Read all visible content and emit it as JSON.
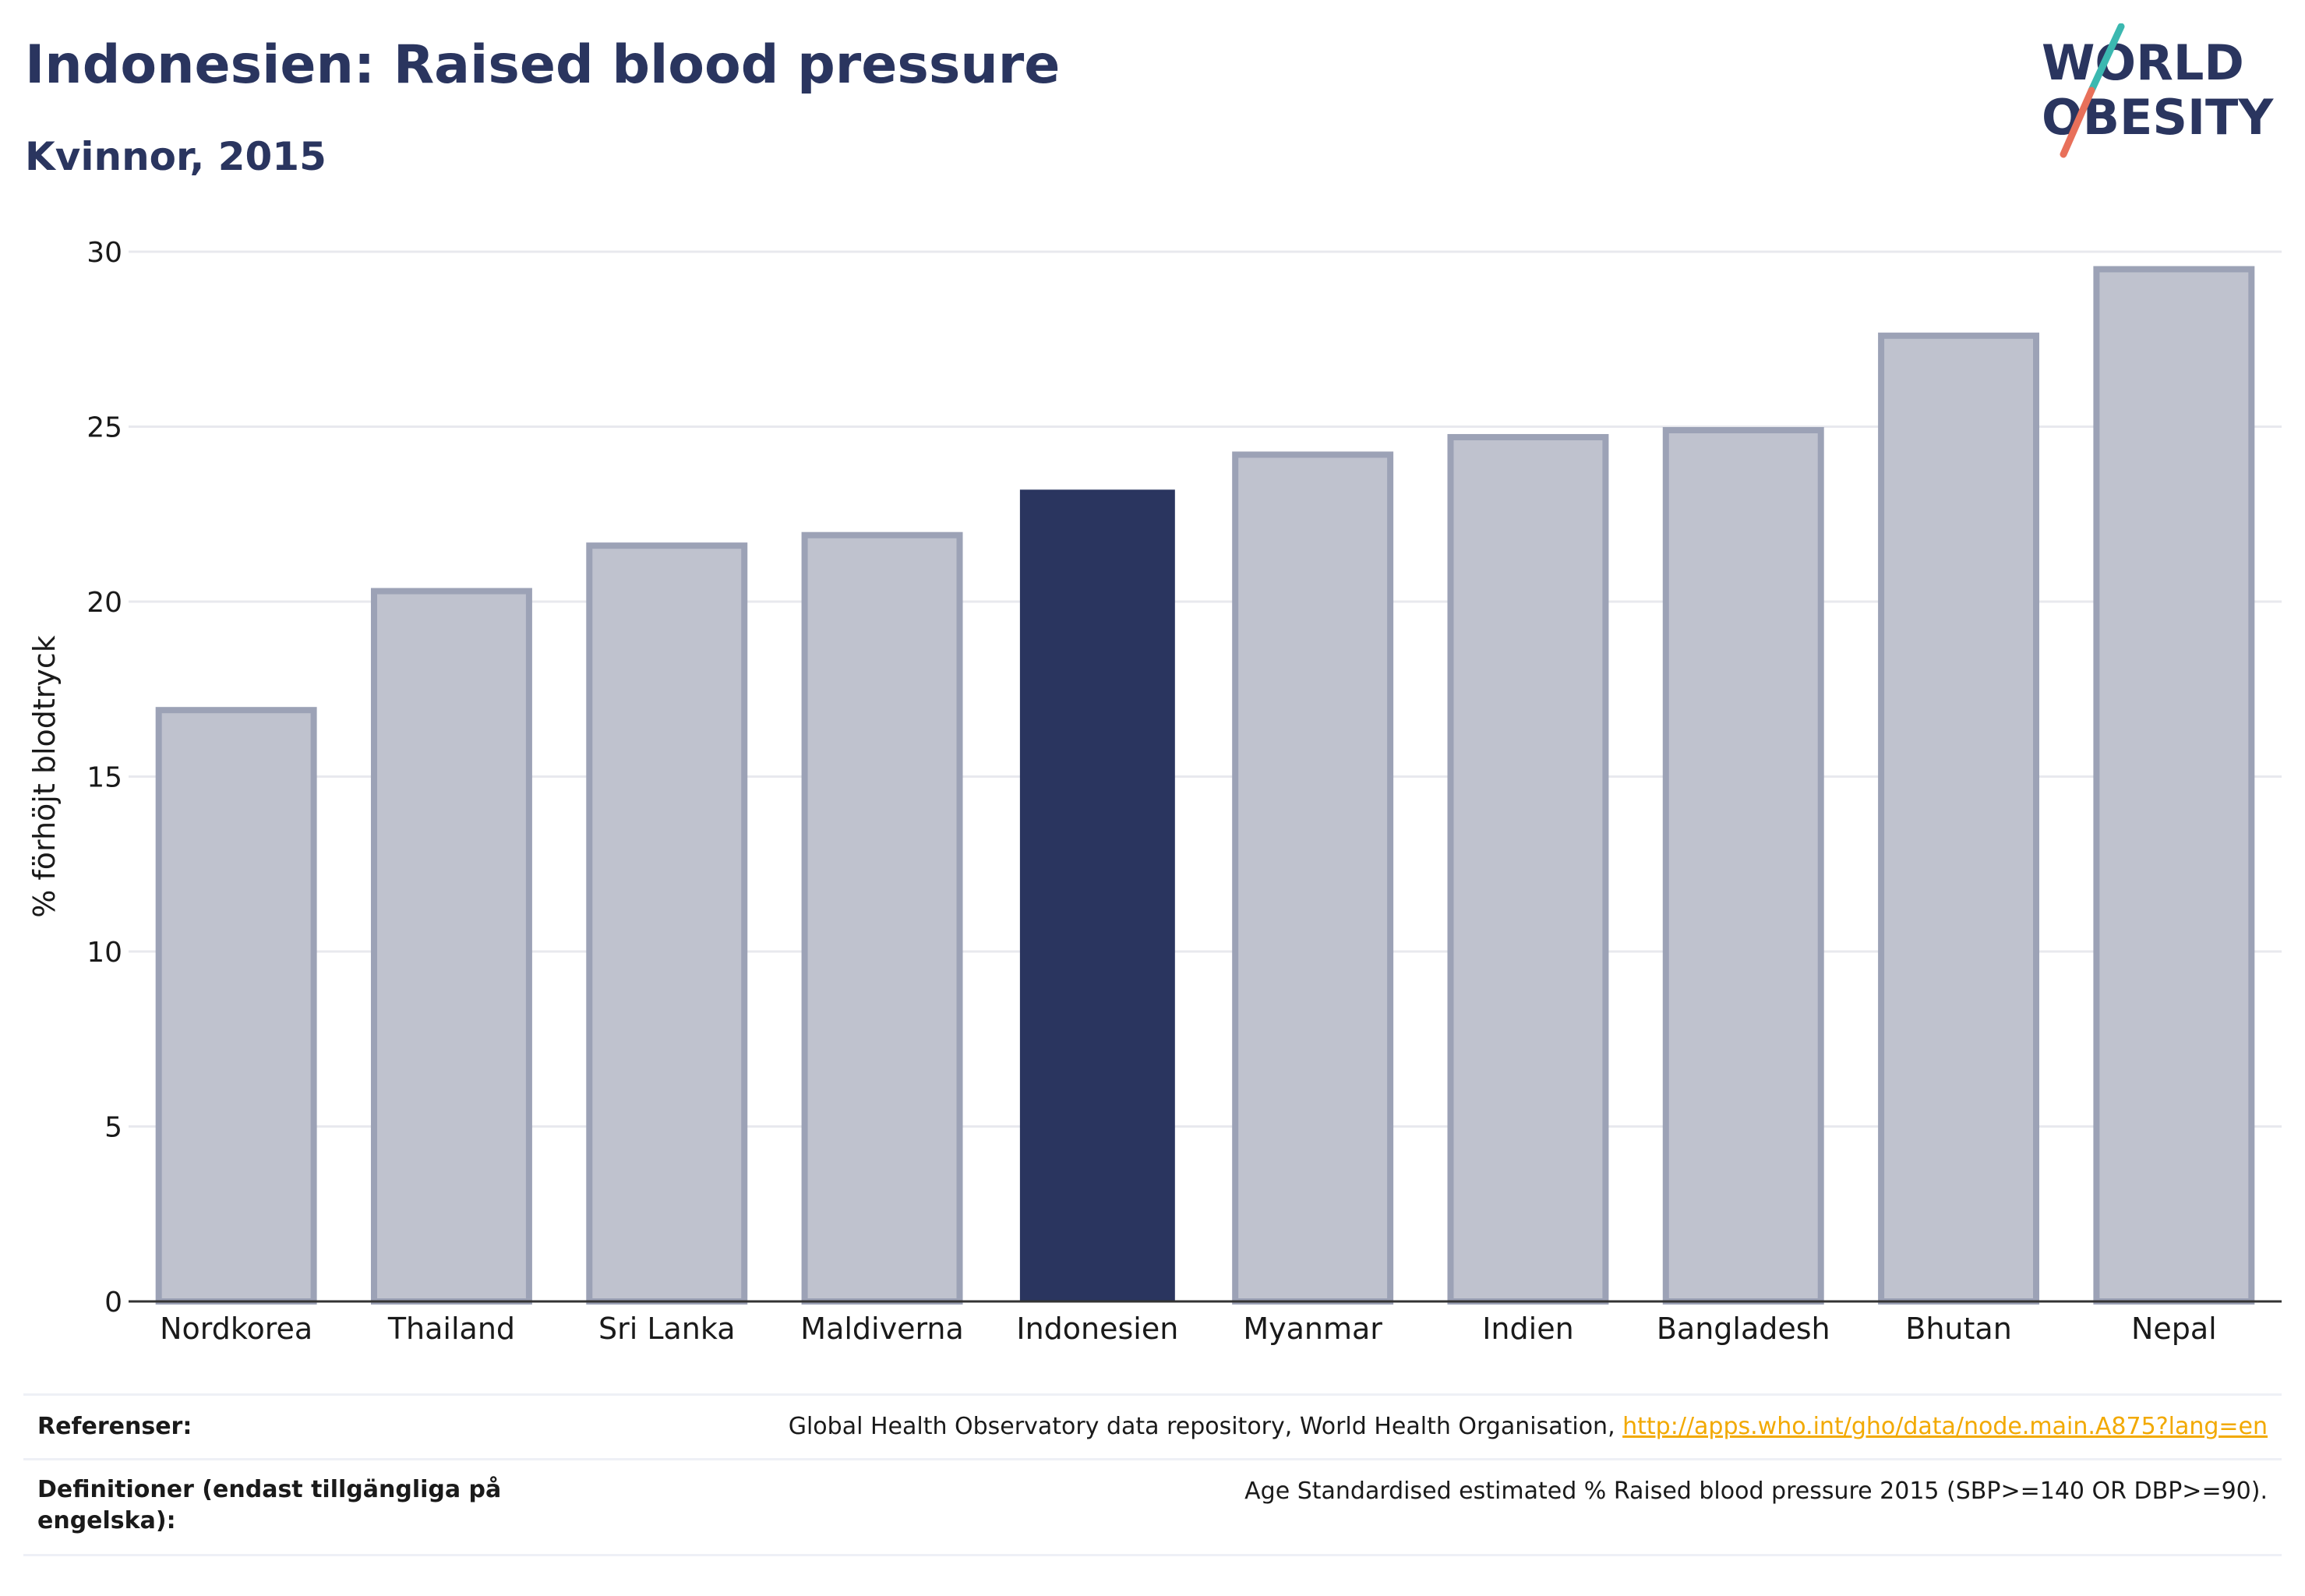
{
  "header": {
    "title": "Indonesien: Raised blood pressure",
    "subtitle": "Kvinnor, 2015"
  },
  "logo": {
    "line1": "WORLD",
    "line2": "OBESITY",
    "colors": {
      "text": "#2a355f",
      "slash_top": "#3bb8b0",
      "slash_bottom": "#e8705a"
    }
  },
  "chart_data": {
    "type": "bar",
    "categories": [
      "Nordkorea",
      "Thailand",
      "Sri Lanka",
      "Maldiverna",
      "Indonesien",
      "Myanmar",
      "Indien",
      "Bangladesh",
      "Bhutan",
      "Nepal"
    ],
    "values": [
      16.9,
      20.3,
      21.6,
      21.9,
      23.2,
      24.2,
      24.7,
      24.9,
      27.6,
      29.5
    ],
    "highlight": "Indonesien",
    "ylabel": "% förhöjt blodtryck",
    "ylim": [
      0,
      30
    ],
    "yticks": [
      0,
      5,
      10,
      15,
      20,
      25,
      30
    ],
    "grid": true,
    "colors": {
      "bar": "#2a355f",
      "bar_fill_muted": "#bfc2ce",
      "bar_stroke_muted": "#9ca2b6",
      "grid": "#e8e9ee",
      "axis": "#333333"
    }
  },
  "footer": {
    "references_label": "Referenser:",
    "references_text": "Global Health Observatory data repository, World Health Organisation, ",
    "references_link": "http://apps.who.int/gho/data/node.main.A875?lang=en",
    "definitions_label": "Definitioner (endast tillgängliga på engelska):",
    "definitions_text": "Age Standardised estimated % Raised blood pressure 2015 (SBP>=140 OR DBP>=90)."
  }
}
